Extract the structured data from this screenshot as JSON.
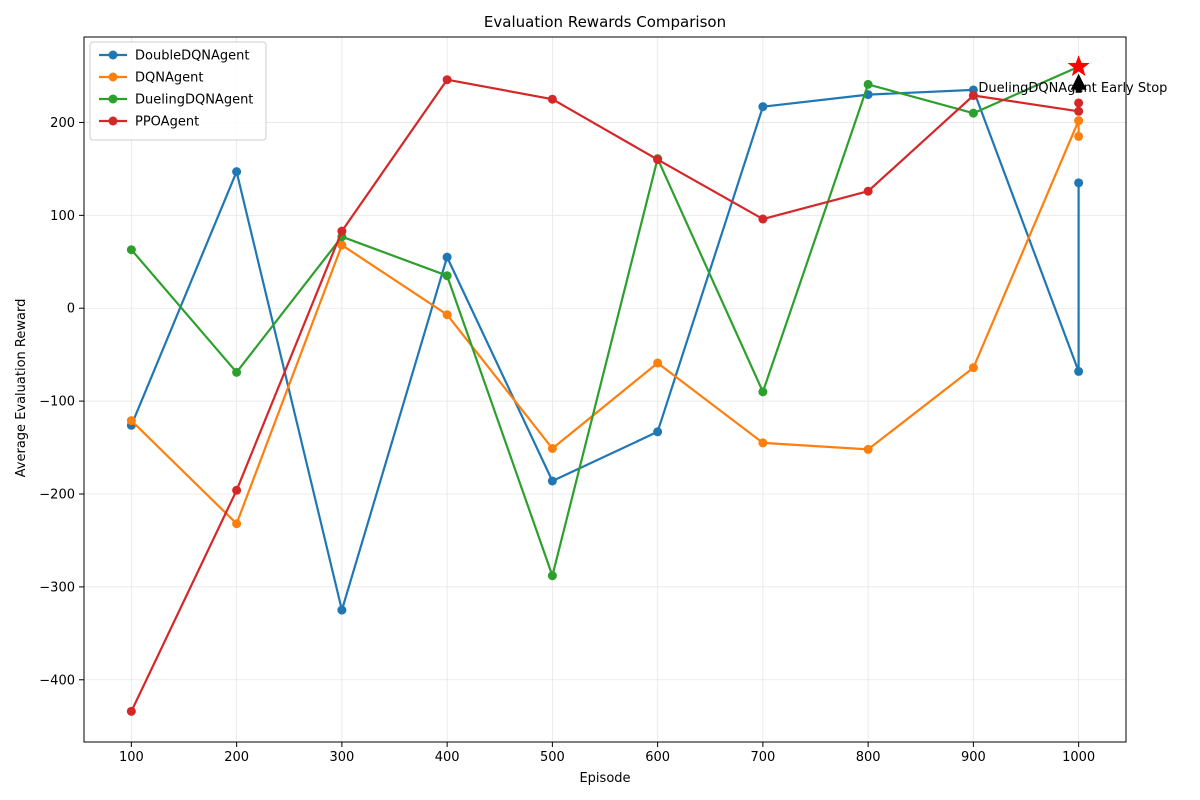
{
  "chart_data": {
    "type": "line",
    "title": "Evaluation Rewards Comparison",
    "xlabel": "Episode",
    "ylabel": "Average Evaluation Reward",
    "xlim": [
      55,
      1045
    ],
    "ylim": [
      -467,
      292
    ],
    "xticks": [
      100,
      200,
      300,
      400,
      500,
      600,
      700,
      800,
      900,
      1000
    ],
    "yticks": [
      -400,
      -300,
      -200,
      -100,
      0,
      100,
      200
    ],
    "ytick_labels": [
      "−400",
      "−300",
      "−200",
      "−100",
      "0",
      "100",
      "200"
    ],
    "grid": true,
    "legend_position": "upper-left",
    "series": [
      {
        "name": "DoubleDQNAgent",
        "color": "#1f77b4",
        "x": [
          100,
          200,
          300,
          400,
          500,
          600,
          700,
          800,
          900,
          1000,
          1000
        ],
        "y": [
          -126,
          147,
          -325,
          55,
          -186,
          -133,
          217,
          230,
          235,
          -68,
          135
        ]
      },
      {
        "name": "DQNAgent",
        "color": "#ff7f0e",
        "x": [
          100,
          200,
          300,
          400,
          500,
          600,
          700,
          800,
          900,
          1000,
          1000
        ],
        "y": [
          -121,
          -232,
          68,
          -7,
          -151,
          -59,
          -145,
          -152,
          -64,
          202,
          185
        ]
      },
      {
        "name": "DuelingDQNAgent",
        "color": "#2ca02c",
        "x": [
          100,
          200,
          300,
          400,
          500,
          600,
          700,
          800,
          900,
          1000
        ],
        "y": [
          63,
          -69,
          77,
          35,
          -288,
          161,
          -90,
          241,
          210,
          260
        ]
      },
      {
        "name": "PPOAgent",
        "color": "#d62728",
        "x": [
          100,
          200,
          300,
          400,
          500,
          600,
          700,
          800,
          900,
          1000,
          1000
        ],
        "y": [
          -434,
          -196,
          83,
          246,
          225,
          160,
          96,
          126,
          229,
          212,
          221
        ]
      }
    ],
    "annotation": {
      "text": "DuelingDQNAgent Early Stop",
      "x": 1000,
      "y": 260,
      "marker": "red-star",
      "arrow": "black-arrow"
    }
  }
}
